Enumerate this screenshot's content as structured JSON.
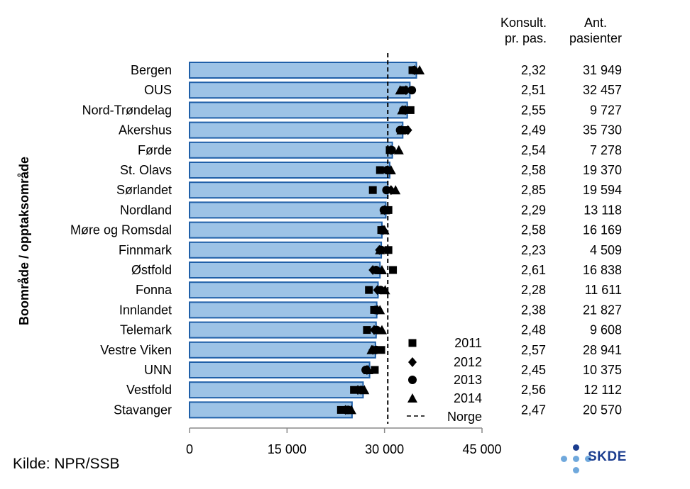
{
  "chart_data": {
    "type": "bar",
    "orientation": "horizontal",
    "ylabel": "Boområde / opptaksområde",
    "categories": [
      "Bergen",
      "OUS",
      "Nord-Trøndelag",
      "Akershus",
      "Førde",
      "St. Olavs",
      "Sørlandet",
      "Nordland",
      "Møre og Romsdal",
      "Finnmark",
      "Østfold",
      "Fonna",
      "Innlandet",
      "Telemark",
      "Vestre Viken",
      "UNN",
      "Vestfold",
      "Stavanger"
    ],
    "values": [
      34900,
      33900,
      33500,
      32800,
      31200,
      30800,
      30500,
      30200,
      29600,
      29500,
      29300,
      29000,
      28800,
      28700,
      28600,
      27700,
      26700,
      25000
    ],
    "markers": [
      {
        "name": "2011",
        "symbol": "square",
        "values": [
          34300,
          33000,
          34000,
          33200,
          30800,
          29300,
          28200,
          30600,
          29500,
          30600,
          31300,
          27600,
          28400,
          27300,
          29500,
          28500,
          25300,
          23300
        ]
      },
      {
        "name": "2012",
        "symbol": "diamond",
        "values": [
          34600,
          33300,
          33200,
          33600,
          31000,
          30500,
          31000,
          30000,
          29800,
          29200,
          28200,
          28900,
          28900,
          28400,
          28200,
          27300,
          25900,
          24000
        ]
      },
      {
        "name": "2013",
        "symbol": "circle",
        "values": [
          34500,
          34200,
          32900,
          32400,
          31100,
          30400,
          30300,
          29900,
          29600,
          29500,
          28700,
          29400,
          28600,
          28800,
          28700,
          27100,
          26400,
          24400
        ]
      },
      {
        "name": "2014",
        "symbol": "triangle",
        "values": [
          35400,
          32400,
          32700,
          32600,
          32200,
          31000,
          31700,
          30100,
          30000,
          29300,
          29600,
          30100,
          29300,
          29600,
          28000,
          27500,
          26900,
          24900
        ]
      }
    ],
    "reference_line": {
      "name": "Norge",
      "value": 30500
    },
    "xlim": [
      0,
      45000
    ],
    "xticks": [
      "0",
      "15 000",
      "30 000",
      "45 000"
    ],
    "xtick_values": [
      0,
      15000,
      30000,
      45000
    ],
    "konsult_per_pas": [
      "2,32",
      "2,51",
      "2,55",
      "2,49",
      "2,54",
      "2,58",
      "2,85",
      "2,29",
      "2,58",
      "2,23",
      "2,61",
      "2,28",
      "2,38",
      "2,48",
      "2,57",
      "2,45",
      "2,56",
      "2,47"
    ],
    "ant_pasienter": [
      "31 949",
      "32 457",
      "9 727",
      "35 730",
      "7 278",
      "19 370",
      "19 594",
      "13 118",
      "16 169",
      "4 509",
      "16 838",
      "11 611",
      "21 827",
      "9 608",
      "28 941",
      "10 375",
      "12 112",
      "20 570"
    ],
    "legend": [
      "2011",
      "2012",
      "2013",
      "2014",
      "Norge"
    ],
    "legend_position": "bottom-right inside plot",
    "bar_color": "#9dc3e6",
    "bar_edge_color": "#1f5fa8"
  },
  "header": {
    "konsult_line1": "Konsult.",
    "konsult_line2": "pr. pas.",
    "ant_line1": "Ant.",
    "ant_line2": "pasienter"
  },
  "source": "Kilde: NPR/SSB",
  "logo": {
    "text": "SKDE",
    "dark_color": "#1b3d8f",
    "light_color": "#6fa8dc"
  }
}
